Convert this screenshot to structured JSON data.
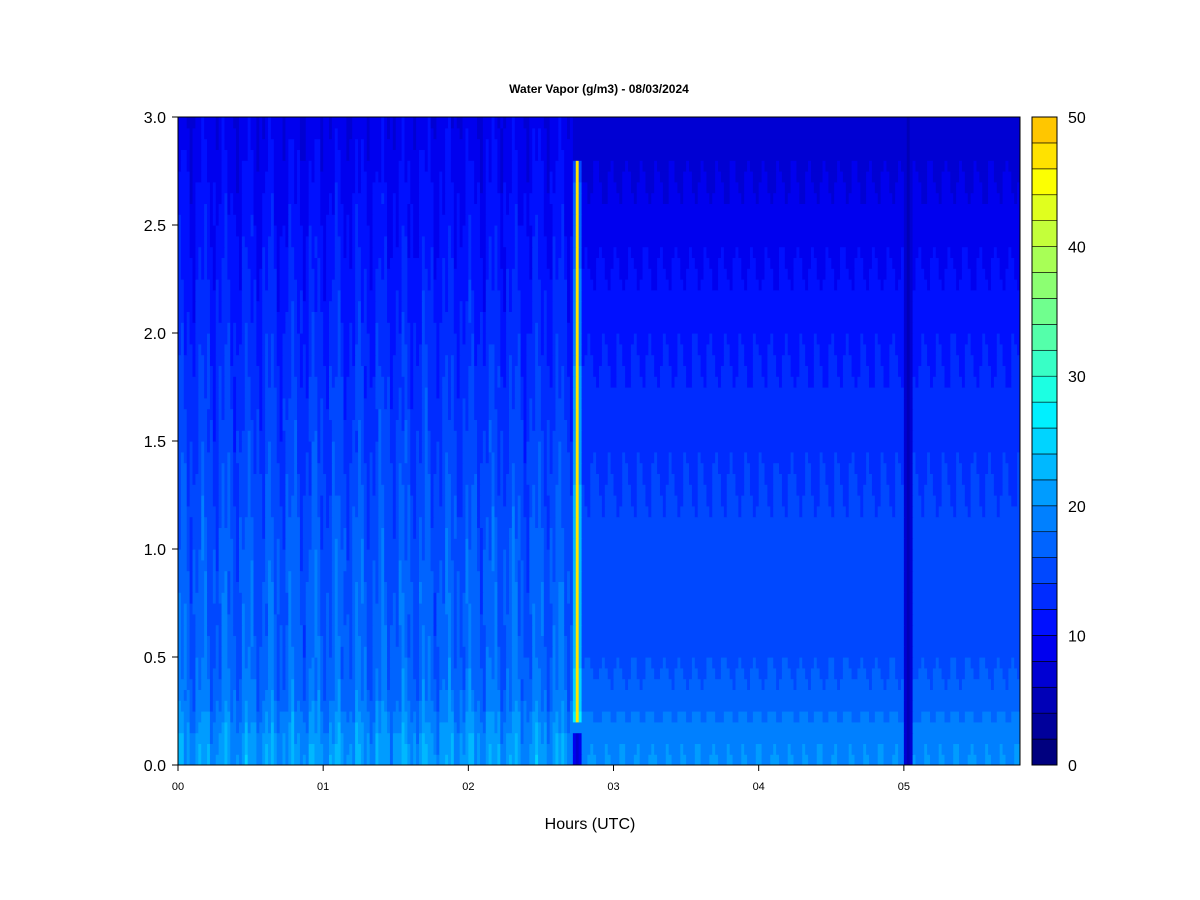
{
  "chart_data": {
    "type": "heatmap",
    "title": "Water Vapor (g/m3) - 08/03/2024",
    "xlabel": "Hours (UTC)",
    "ylabel": "",
    "x_ticks": [
      "00",
      "01",
      "02",
      "03",
      "04",
      "05"
    ],
    "y_ticks": [
      "0.0",
      "0.5",
      "1.0",
      "1.5",
      "2.0",
      "2.5",
      "3.0"
    ],
    "xlim": [
      0,
      5.8
    ],
    "ylim": [
      0,
      3.0
    ],
    "colorbar": {
      "ticks": [
        "0",
        "10",
        "20",
        "30",
        "40",
        "50"
      ],
      "range": [
        0,
        50
      ],
      "step": 2,
      "colors": [
        "#00007f",
        "#00009b",
        "#0000b7",
        "#0000d3",
        "#0000ef",
        "#0010ff",
        "#002cff",
        "#0048ff",
        "#0064ff",
        "#0080ff",
        "#009cff",
        "#00b8ff",
        "#00d4ff",
        "#00f0ff",
        "#1cffe2",
        "#38ffc6",
        "#54ffaa",
        "#70ff8e",
        "#8cff72",
        "#a8ff56",
        "#c4ff3a",
        "#e0ff1e",
        "#fcff02",
        "#ffe200",
        "#ffc600"
      ]
    },
    "z_by_height": {
      "heights": [
        0.0,
        0.1,
        0.2,
        0.3,
        0.5,
        0.8,
        1.0,
        1.3,
        1.6,
        2.0,
        2.4,
        2.8,
        3.0
      ],
      "early_period_0_to_2_75h": [
        21,
        20.5,
        19.5,
        18,
        17,
        16.5,
        16,
        15,
        14,
        12.5,
        11,
        9.5,
        8.5
      ],
      "late_period_2_8_to_5_8h": [
        20,
        19.5,
        18.5,
        17,
        15.5,
        15,
        15,
        14,
        13,
        11.5,
        9.5,
        7.5,
        6.5
      ]
    },
    "features": [
      {
        "x": 2.75,
        "y_from": 0.2,
        "y_to": 2.8,
        "value": 47,
        "note": "precipitation spike"
      },
      {
        "x": 2.75,
        "y_from": 0.0,
        "y_to": 0.15,
        "value": 7
      },
      {
        "x": 5.03,
        "y_from": 0.0,
        "y_to": 3.0,
        "value": 5
      }
    ]
  }
}
